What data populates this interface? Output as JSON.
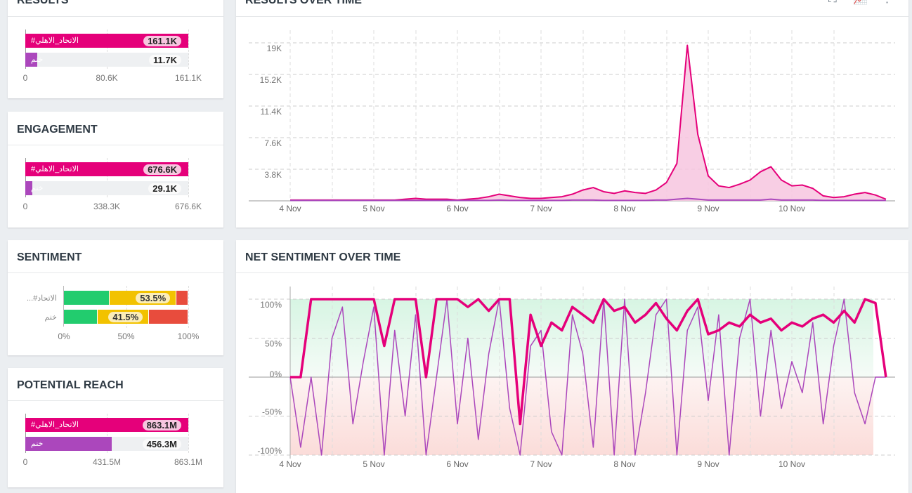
{
  "panels": {
    "results": {
      "title": "RESULTS",
      "rows": [
        {
          "label": "#الاتحاد_الاهلي",
          "value": "161.1K",
          "frac": 1.0,
          "color": "#e5007a"
        },
        {
          "label": "خنم",
          "value": "11.7K",
          "frac": 0.073,
          "color": "#ab47bc"
        }
      ],
      "ticks": [
        "0",
        "80.6K",
        "161.1K"
      ]
    },
    "engagement": {
      "title": "ENGAGEMENT",
      "rows": [
        {
          "label": "#الاتحاد_الاهلي",
          "value": "676.6K",
          "frac": 1.0,
          "color": "#e5007a"
        },
        {
          "label": "خنم",
          "value": "29.1K",
          "frac": 0.043,
          "color": "#ab47bc"
        }
      ],
      "ticks": [
        "0",
        "338.3K",
        "676.6K"
      ]
    },
    "sentiment": {
      "title": "SENTIMENT",
      "rows": [
        {
          "label": "...#الاتحاد",
          "positive": 37,
          "neutral": 53.5,
          "negative": 9.5,
          "value": "53.5%"
        },
        {
          "label": "خنم",
          "positive": 27,
          "neutral": 41.5,
          "negative": 31.5,
          "value": "41.5%"
        }
      ],
      "ticks": [
        "0%",
        "50%",
        "100%"
      ],
      "colors": {
        "positive": "#22cc6e",
        "neutral": "#f2c200",
        "negative": "#e84c3d"
      }
    },
    "reach": {
      "title": "POTENTIAL REACH",
      "rows": [
        {
          "label": "#الاتحاد_الاهلي",
          "value": "863.1M",
          "frac": 1.0,
          "color": "#e5007a"
        },
        {
          "label": "خنم",
          "value": "456.3M",
          "frac": 0.529,
          "color": "#ab47bc"
        }
      ],
      "ticks": [
        "0",
        "431.5M",
        "863.1M"
      ]
    }
  },
  "chart_data": [
    {
      "type": "area",
      "title": "RESULTS OVER TIME",
      "x_start_day": 0,
      "x_step_days": 0.125,
      "xticks": [
        "4 Nov",
        "5 Nov",
        "6 Nov",
        "7 Nov",
        "8 Nov",
        "9 Nov",
        "10 Nov"
      ],
      "yticks": [
        "3.8K",
        "7.6K",
        "11.4K",
        "15.2K",
        "19K"
      ],
      "ylim": [
        0,
        19
      ],
      "series": [
        {
          "name": "#الاتحاد_الاهلي",
          "color": "#e5007a",
          "values": [
            0.1,
            0.1,
            0.1,
            0.1,
            0.1,
            0.1,
            0.1,
            0.1,
            0.1,
            0.1,
            0.1,
            0.2,
            0.3,
            0.2,
            0.2,
            0.2,
            0.1,
            0.2,
            0.3,
            0.5,
            0.8,
            0.6,
            0.4,
            0.3,
            0.3,
            0.4,
            0.5,
            0.8,
            1.3,
            1.6,
            1.1,
            0.9,
            1.2,
            1.0,
            0.9,
            1.3,
            2.2,
            4.5,
            18.7,
            8.0,
            3.0,
            1.8,
            1.6,
            2.0,
            2.5,
            3.5,
            4.1,
            2.5,
            1.8,
            1.9,
            1.5,
            0.6,
            0.4,
            0.5,
            0.8,
            1.0,
            0.7,
            0.2
          ]
        },
        {
          "name": "خنم",
          "color": "#ab47bc",
          "values": [
            0.05,
            0.05,
            0.05,
            0.05,
            0.05,
            0.05,
            0.05,
            0.05,
            0.05,
            0.05,
            0.05,
            0.05,
            0.05,
            0.05,
            0.05,
            0.05,
            0.05,
            0.05,
            0.05,
            0.05,
            0.1,
            0.05,
            0.05,
            0.05,
            0.05,
            0.05,
            0.05,
            0.1,
            0.1,
            0.1,
            0.05,
            0.05,
            0.05,
            0.05,
            0.05,
            0.1,
            0.1,
            0.2,
            0.3,
            0.2,
            0.1,
            0.1,
            0.1,
            0.1,
            0.1,
            0.1,
            0.2,
            0.1,
            0.1,
            0.1,
            0.1,
            0.05,
            0.05,
            0.05,
            0.05,
            0.05,
            0.05,
            0.05
          ]
        }
      ],
      "toolbar": [
        "fullscreen-icon",
        "chart-type-icon",
        "more-icon"
      ]
    },
    {
      "type": "line",
      "title": "NET SENTIMENT OVER TIME",
      "x_start_day": 0,
      "x_step_days": 0.125,
      "xticks": [
        "4 Nov",
        "5 Nov",
        "6 Nov",
        "7 Nov",
        "8 Nov",
        "9 Nov",
        "10 Nov"
      ],
      "yticks": [
        "-100%",
        "-50%",
        "0%",
        "50%",
        "100%"
      ],
      "ylim": [
        -100,
        100
      ],
      "series": [
        {
          "name": "#الاتحاد_الاهلي",
          "color": "#e5007a",
          "values": [
            0,
            0,
            100,
            100,
            100,
            100,
            100,
            100,
            100,
            40,
            100,
            100,
            100,
            0,
            100,
            100,
            100,
            90,
            100,
            85,
            100,
            100,
            -60,
            80,
            40,
            70,
            60,
            90,
            80,
            70,
            100,
            85,
            90,
            70,
            80,
            95,
            75,
            60,
            85,
            100,
            55,
            60,
            70,
            65,
            80,
            70,
            75,
            60,
            70,
            65,
            75,
            80,
            70,
            85,
            70,
            100,
            95,
            0
          ]
        },
        {
          "name": "خنم",
          "color": "#ab47bc",
          "values": [
            0,
            -90,
            0,
            -100,
            50,
            90,
            -60,
            20,
            90,
            -100,
            60,
            -50,
            80,
            -100,
            0,
            100,
            -60,
            50,
            -80,
            30,
            100,
            -40,
            -100,
            40,
            60,
            -70,
            -100,
            80,
            30,
            -90,
            100,
            -100,
            100,
            -100,
            -20,
            80,
            100,
            -100,
            60,
            90,
            -30,
            80,
            -100,
            50,
            100,
            -50,
            60,
            -40,
            20,
            -20,
            70,
            -60,
            40,
            100,
            -20,
            -60,
            0,
            0
          ]
        }
      ]
    }
  ]
}
